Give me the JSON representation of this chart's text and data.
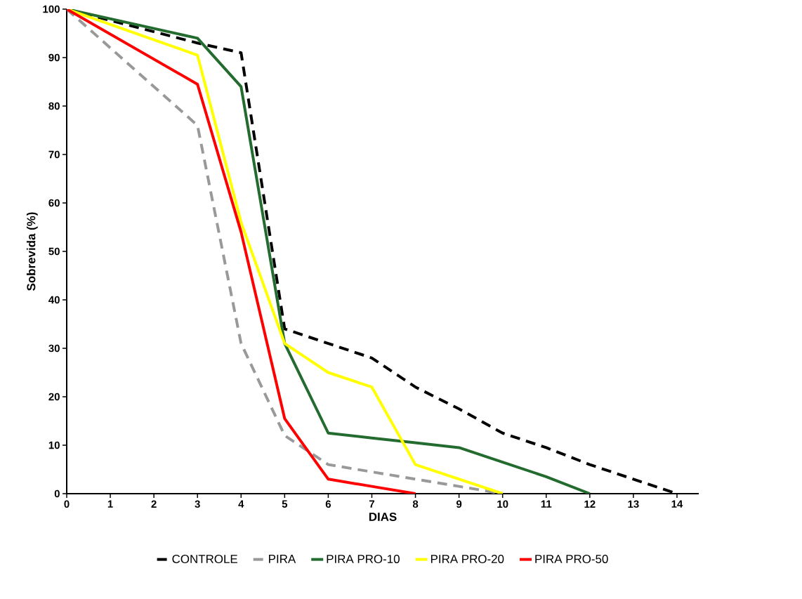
{
  "chart_data": {
    "type": "line",
    "xlabel": "DIAS",
    "ylabel": "Sobrevida (%)",
    "xlim": [
      0,
      14.5
    ],
    "ylim": [
      0,
      100
    ],
    "xticks": [
      0,
      1,
      2,
      3,
      4,
      5,
      6,
      7,
      8,
      9,
      10,
      11,
      12,
      13,
      14
    ],
    "yticks": [
      0,
      10,
      20,
      30,
      40,
      50,
      60,
      70,
      80,
      90,
      100
    ],
    "grid": false,
    "legend": "bottom",
    "marker": "none",
    "series": [
      {
        "name": "CONTROLE",
        "color": "#000000",
        "line_style": "dashed",
        "x": [
          0,
          3,
          4,
          5,
          6,
          7,
          8,
          9,
          10,
          11,
          12,
          13,
          14
        ],
        "values": [
          100,
          93,
          91,
          34,
          31,
          28,
          22,
          17.5,
          12.5,
          9.5,
          6,
          3,
          0
        ]
      },
      {
        "name": "PIRA",
        "color": "#999999",
        "line_style": "dashed",
        "x": [
          0,
          3,
          4,
          5,
          6,
          7,
          8,
          9,
          10
        ],
        "values": [
          100,
          76,
          31,
          12,
          6,
          4.5,
          3,
          1.5,
          0
        ]
      },
      {
        "name": "PIRA PRO-10",
        "color": "#236b2e",
        "line_style": "solid",
        "x": [
          0,
          3,
          4,
          5,
          6,
          7,
          8,
          9,
          10,
          11,
          12
        ],
        "values": [
          100,
          94,
          84,
          31,
          12.5,
          11.5,
          10.5,
          9.5,
          6.5,
          3.5,
          0
        ]
      },
      {
        "name": "PIRA PRO-20",
        "color": "#ffff00",
        "line_style": "solid",
        "x": [
          0,
          3,
          4,
          5,
          6,
          7,
          8,
          9,
          10
        ],
        "values": [
          100,
          90.5,
          56,
          31,
          25,
          22,
          6,
          3,
          0
        ]
      },
      {
        "name": "PIRA PRO-50",
        "color": "#ff0000",
        "line_style": "solid",
        "x": [
          0,
          3,
          4,
          5,
          6,
          7,
          8
        ],
        "values": [
          100,
          84.5,
          54,
          15.5,
          3,
          1.5,
          0
        ]
      }
    ]
  }
}
